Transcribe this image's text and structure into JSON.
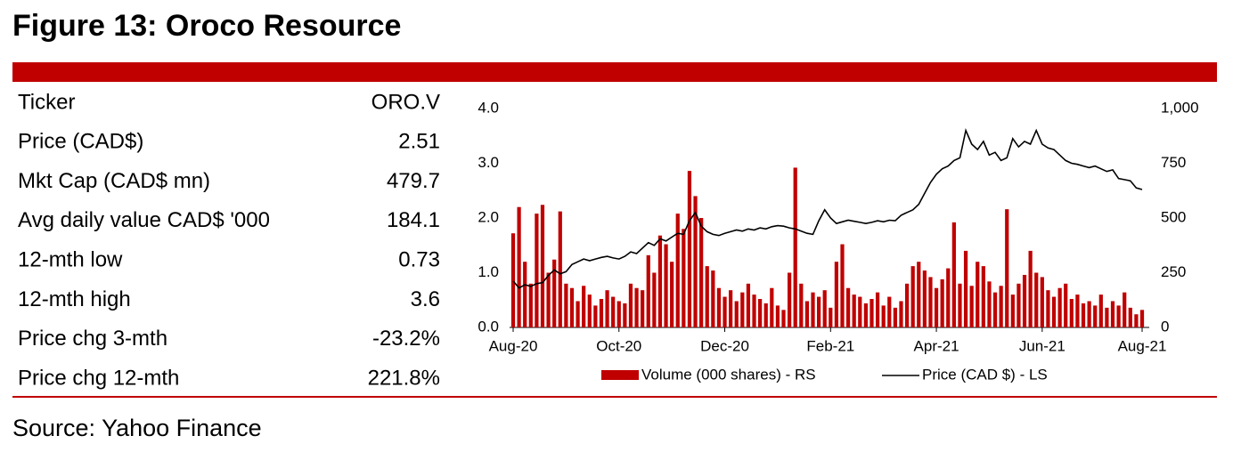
{
  "header": {
    "title": "Figure 13: Oroco Resource"
  },
  "table": {
    "rows": [
      [
        "Ticker",
        "ORO.V"
      ],
      [
        "Price (CAD$)",
        "2.51"
      ],
      [
        "Mkt Cap (CAD$ mn)",
        "479.7"
      ],
      [
        "Avg daily value CAD$ '000",
        "184.1"
      ],
      [
        "12-mth low",
        "0.73"
      ],
      [
        "12-mth high",
        "3.6"
      ],
      [
        "Price chg 3-mth",
        "-23.2%"
      ],
      [
        "Price chg 12-mth",
        "221.8%"
      ]
    ]
  },
  "chart_data": {
    "type": "combo",
    "categories": [
      "Aug-20",
      null,
      null,
      null,
      null,
      null,
      null,
      null,
      null,
      null,
      null,
      null,
      null,
      null,
      null,
      null,
      null,
      null,
      "Oct-20",
      null,
      null,
      null,
      null,
      null,
      null,
      null,
      null,
      null,
      null,
      null,
      null,
      null,
      null,
      null,
      null,
      null,
      "Dec-20",
      null,
      null,
      null,
      null,
      null,
      null,
      null,
      null,
      null,
      null,
      null,
      null,
      null,
      null,
      null,
      null,
      null,
      "Feb-21",
      null,
      null,
      null,
      null,
      null,
      null,
      null,
      null,
      null,
      null,
      null,
      null,
      null,
      null,
      null,
      null,
      null,
      "Apr-21",
      null,
      null,
      null,
      null,
      null,
      null,
      null,
      null,
      null,
      null,
      null,
      null,
      null,
      null,
      null,
      null,
      null,
      "Jun-21",
      null,
      null,
      null,
      null,
      null,
      null,
      null,
      null,
      null,
      null,
      null,
      null,
      null,
      null,
      null,
      null,
      "Aug-21"
    ],
    "series": [
      {
        "name": "Volume (000 shares) - RS",
        "kind": "bar",
        "axis": "y2",
        "color": "#c00000",
        "values": [
          430,
          550,
          300,
          200,
          520,
          560,
          250,
          310,
          530,
          200,
          180,
          120,
          190,
          150,
          100,
          130,
          170,
          140,
          120,
          110,
          200,
          180,
          170,
          330,
          250,
          420,
          380,
          300,
          520,
          450,
          715,
          600,
          500,
          280,
          260,
          180,
          140,
          170,
          120,
          160,
          200,
          150,
          130,
          110,
          180,
          100,
          80,
          250,
          730,
          200,
          120,
          160,
          140,
          170,
          90,
          300,
          380,
          180,
          150,
          140,
          110,
          130,
          160,
          100,
          140,
          90,
          120,
          200,
          280,
          300,
          260,
          230,
          180,
          220,
          270,
          480,
          200,
          350,
          190,
          300,
          280,
          210,
          160,
          190,
          540,
          150,
          200,
          240,
          350,
          250,
          230,
          170,
          140,
          180,
          200,
          130,
          150,
          110,
          120,
          100,
          150,
          90,
          120,
          100,
          160,
          90,
          60,
          80
        ]
      },
      {
        "name": "Price (CAD $) - LS",
        "kind": "line",
        "axis": "y",
        "color": "#000000",
        "values": [
          0.85,
          0.72,
          0.78,
          0.75,
          0.8,
          0.82,
          0.95,
          1.05,
          0.98,
          1.02,
          1.15,
          1.2,
          1.25,
          1.22,
          1.25,
          1.28,
          1.3,
          1.27,
          1.25,
          1.3,
          1.38,
          1.35,
          1.45,
          1.55,
          1.5,
          1.62,
          1.58,
          1.65,
          1.72,
          1.7,
          1.95,
          2.1,
          1.85,
          1.75,
          1.7,
          1.68,
          1.72,
          1.75,
          1.78,
          1.76,
          1.8,
          1.78,
          1.82,
          1.8,
          1.84,
          1.86,
          1.85,
          1.82,
          1.8,
          1.76,
          1.72,
          1.7,
          1.95,
          2.15,
          2.0,
          1.9,
          1.93,
          1.96,
          1.94,
          1.92,
          1.9,
          1.92,
          1.95,
          1.93,
          1.96,
          1.95,
          2.05,
          2.1,
          2.15,
          2.25,
          2.45,
          2.65,
          2.8,
          2.9,
          2.95,
          3.05,
          3.1,
          3.6,
          3.35,
          3.25,
          3.4,
          3.15,
          3.2,
          3.05,
          3.1,
          3.45,
          3.3,
          3.4,
          3.35,
          3.6,
          3.35,
          3.28,
          3.25,
          3.15,
          3.05,
          3.0,
          2.98,
          2.95,
          2.92,
          2.95,
          2.9,
          2.85,
          2.88,
          2.72,
          2.7,
          2.68,
          2.55,
          2.52
        ]
      }
    ],
    "ylim": [
      0,
      4
    ],
    "yticks": [
      {
        "value": 0,
        "label": "0.0"
      },
      {
        "value": 1,
        "label": "1.0"
      },
      {
        "value": 2,
        "label": "2.0"
      },
      {
        "value": 3,
        "label": "3.0"
      },
      {
        "value": 4,
        "label": "4.0"
      }
    ],
    "y2lim": [
      0,
      1000
    ],
    "y2ticks": [
      0,
      250,
      500,
      750,
      {
        "value": 1000,
        "label": "1,000"
      }
    ]
  },
  "source": "Source: Yahoo Finance"
}
